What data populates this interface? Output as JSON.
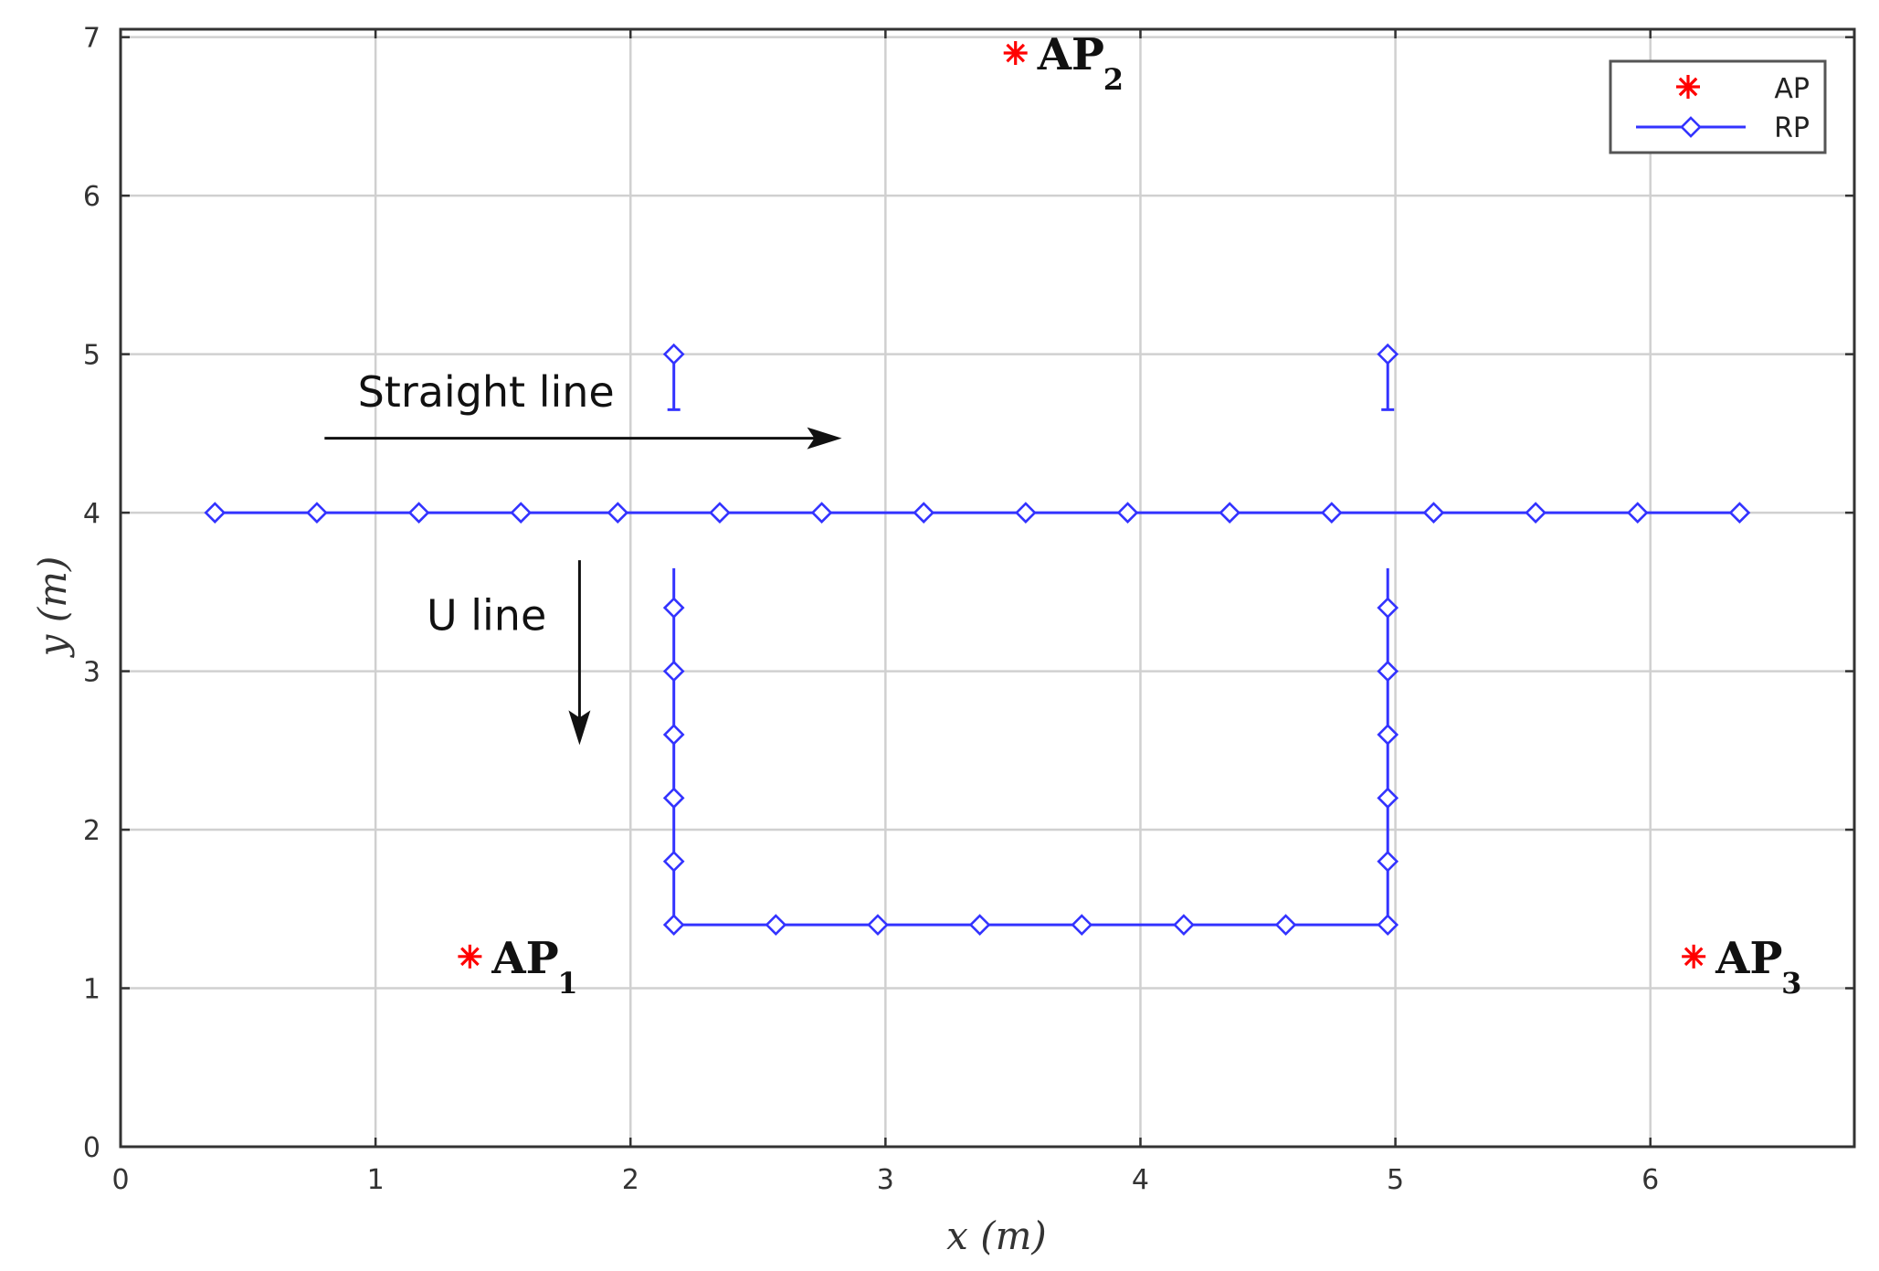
{
  "chart_data": {
    "type": "scatter",
    "xlabel": "x (m)",
    "ylabel": "y (m)",
    "xlim": [
      0,
      6.8
    ],
    "ylim": [
      0,
      7.05
    ],
    "xticks": [
      0,
      1,
      2,
      3,
      4,
      5,
      6
    ],
    "yticks": [
      0,
      1,
      2,
      3,
      4,
      5,
      6,
      7
    ],
    "grid": true,
    "legend": {
      "placement": "top-right",
      "entries": [
        {
          "label": "AP",
          "marker": "asterisk",
          "color": "#ff0000"
        },
        {
          "label": "RP",
          "marker": "diamond-line",
          "color": "#3333ff"
        }
      ]
    },
    "ap_points": [
      {
        "name": "AP",
        "sub": "1",
        "x": 1.37,
        "y": 1.2
      },
      {
        "name": "AP",
        "sub": "2",
        "x": 3.51,
        "y": 6.9
      },
      {
        "name": "AP",
        "sub": "3",
        "x": 6.17,
        "y": 1.2
      }
    ],
    "rp_straight": {
      "x": [
        0.37,
        0.77,
        1.17,
        1.57,
        1.95,
        2.35,
        2.75,
        3.15,
        3.55,
        3.95,
        4.35,
        4.75,
        5.15,
        5.55,
        5.95,
        6.35
      ],
      "y": 4.0
    },
    "rp_u_line": {
      "left_x": 2.17,
      "right_x": 4.97,
      "top_y": 3.65,
      "bottom_y": 1.4,
      "vertical_y": [
        3.4,
        3.0,
        2.6,
        2.2,
        1.8,
        1.4
      ],
      "bottom_x": [
        2.57,
        2.97,
        3.37,
        3.77,
        4.17,
        4.57
      ]
    },
    "rp_stubs": [
      {
        "x": 2.17,
        "y_top": 5.0,
        "y_bottom": 4.65
      },
      {
        "x": 4.97,
        "y_top": 5.0,
        "y_bottom": 4.65
      }
    ],
    "annotations": [
      {
        "text": "Straight line",
        "x": 0.93,
        "y": 4.67,
        "arrow": "right",
        "arrow_from": [
          0.8,
          4.47
        ],
        "arrow_to": [
          2.8,
          4.47
        ]
      },
      {
        "text": "U line",
        "x": 1.2,
        "y": 3.26,
        "arrow": "down",
        "arrow_from": [
          1.8,
          3.7
        ],
        "arrow_to": [
          1.8,
          2.58
        ]
      }
    ],
    "colors": {
      "ap": "#ff0000",
      "rp": "#3333ff",
      "grid": "#d0d0d0",
      "frame": "#333333"
    }
  }
}
